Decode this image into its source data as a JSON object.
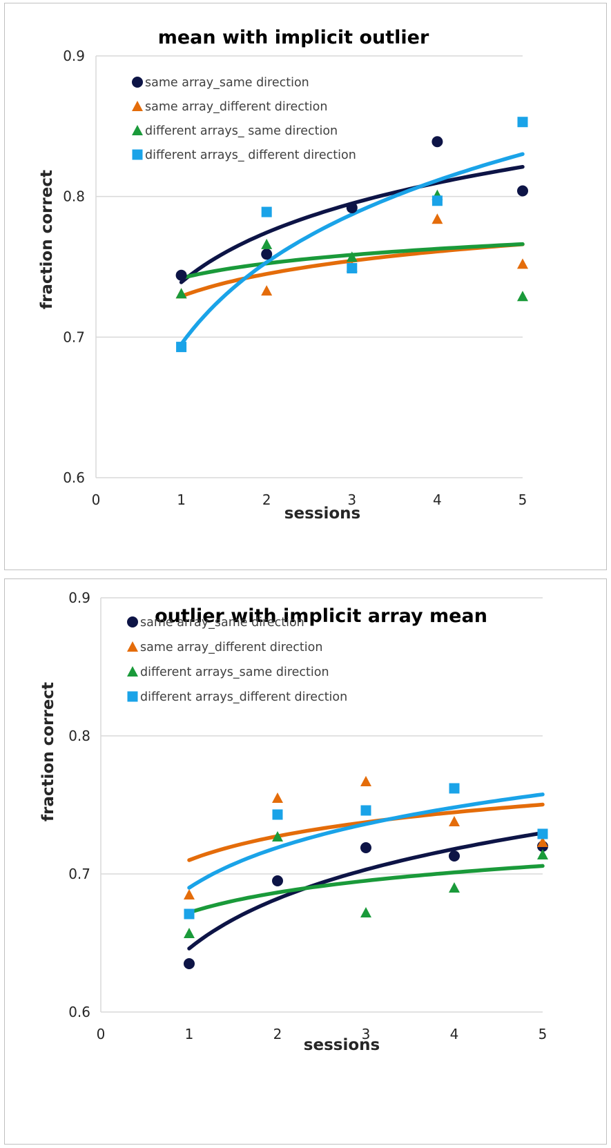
{
  "chart_data": [
    {
      "type": "scatter",
      "title": "mean with implicit outlier",
      "xlabel": "sessions",
      "ylabel": "fraction correct",
      "xlim": [
        0,
        5
      ],
      "ylim": [
        0.6,
        0.9
      ],
      "x_ticks": [
        "0",
        "1",
        "2",
        "3",
        "4",
        "5"
      ],
      "y_ticks": [
        "0.6",
        "0.7",
        "0.8",
        "0.9"
      ],
      "grid": "horizontal",
      "legend_position": "top-left",
      "trendline": "logarithmic",
      "series": [
        {
          "name": "same array_same direction",
          "marker": "circle",
          "color": "#0d1446",
          "x": [
            1,
            2,
            3,
            4,
            5
          ],
          "values": [
            0.744,
            0.759,
            0.792,
            0.839,
            0.804
          ],
          "fit": {
            "a": 0.739,
            "b": 0.051
          }
        },
        {
          "name": "same array_different direction",
          "marker": "triangle",
          "color": "#e46c0a",
          "x": [
            1,
            2,
            3,
            4,
            5
          ],
          "values": [
            0.731,
            0.733,
            0.75,
            0.784,
            0.752
          ],
          "fit": {
            "a": 0.729,
            "b": 0.023
          }
        },
        {
          "name": "different arrays_ same direction",
          "marker": "triangle",
          "color": "#1a9a3a",
          "x": [
            1,
            2,
            3,
            4,
            5
          ],
          "values": [
            0.731,
            0.766,
            0.757,
            0.801,
            0.729
          ],
          "fit": {
            "a": 0.742,
            "b": 0.015
          }
        },
        {
          "name": "different arrays_ different direction",
          "marker": "square",
          "color": "#1aa3e8",
          "x": [
            1,
            2,
            3,
            4,
            5
          ],
          "values": [
            0.693,
            0.789,
            0.749,
            0.797,
            0.853
          ],
          "fit": {
            "a": 0.695,
            "b": 0.084
          }
        }
      ]
    },
    {
      "type": "scatter",
      "title": "outlier with implicit array mean",
      "xlabel": "sessions",
      "ylabel": "fraction correct",
      "xlim": [
        0,
        5
      ],
      "ylim": [
        0.6,
        0.9
      ],
      "x_ticks": [
        "0",
        "1",
        "2",
        "3",
        "4",
        "5"
      ],
      "y_ticks": [
        "0.6",
        "0.7",
        "0.8",
        "0.9"
      ],
      "grid": "horizontal",
      "legend_position": "top-left",
      "trendline": "logarithmic",
      "series": [
        {
          "name": "same array_same direction",
          "marker": "circle",
          "color": "#0d1446",
          "x": [
            1,
            2,
            3,
            4,
            5
          ],
          "values": [
            0.635,
            0.695,
            0.719,
            0.713,
            0.72
          ],
          "fit": {
            "a": 0.646,
            "b": 0.052
          }
        },
        {
          "name": "same array_different direction",
          "marker": "triangle",
          "color": "#e46c0a",
          "x": [
            1,
            2,
            3,
            4,
            5
          ],
          "values": [
            0.685,
            0.755,
            0.767,
            0.738,
            0.723
          ],
          "fit": {
            "a": 0.71,
            "b": 0.025
          }
        },
        {
          "name": "different arrays_same direction",
          "marker": "triangle",
          "color": "#1a9a3a",
          "x": [
            1,
            2,
            3,
            4,
            5
          ],
          "values": [
            0.657,
            0.727,
            0.672,
            0.69,
            0.714
          ],
          "fit": {
            "a": 0.672,
            "b": 0.021
          }
        },
        {
          "name": "different arrays_different direction",
          "marker": "square",
          "color": "#1aa3e8",
          "x": [
            1,
            2,
            3,
            4,
            5
          ],
          "values": [
            0.671,
            0.743,
            0.746,
            0.762,
            0.729
          ],
          "fit": {
            "a": 0.69,
            "b": 0.042
          }
        }
      ]
    }
  ]
}
